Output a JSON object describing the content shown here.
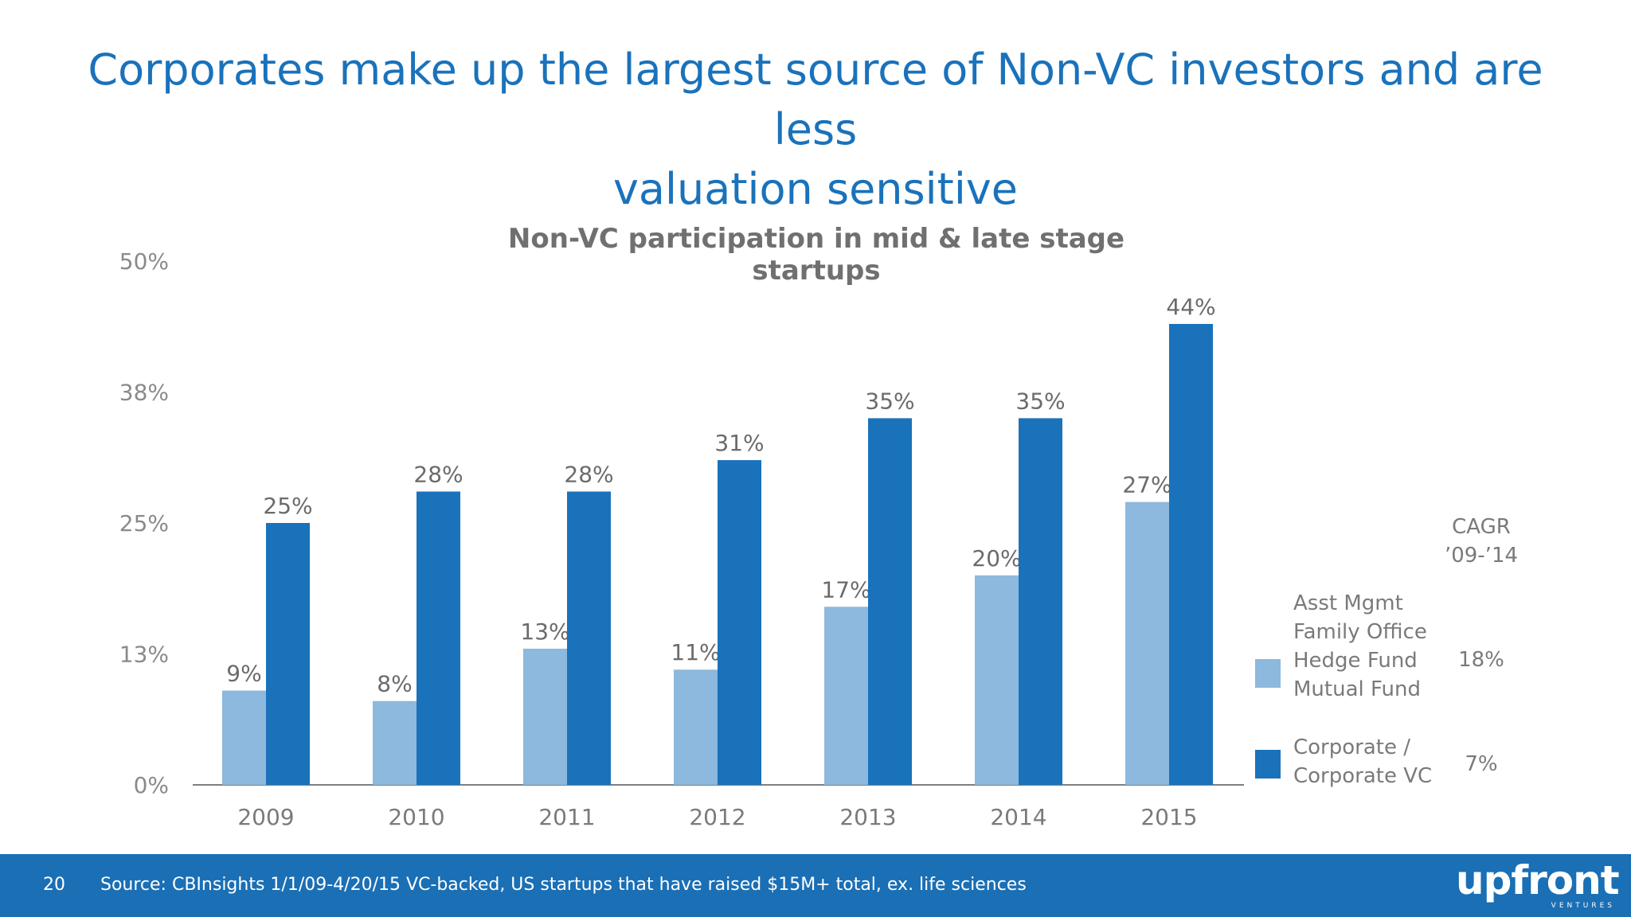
{
  "slide": {
    "title_line1": "Corporates make up the largest source of Non-VC investors and are less",
    "title_line2": "valuation sensitive"
  },
  "chart_data": {
    "type": "bar",
    "title": "Non-VC participation in mid & late stage startups",
    "categories": [
      "2009",
      "2010",
      "2011",
      "2012",
      "2013",
      "2014",
      "2015"
    ],
    "series": [
      {
        "name": "Asst Mgmt / Family Office / Hedge Fund / Mutual Fund",
        "color": "#8cb9dd",
        "values": [
          9,
          8,
          13,
          11,
          17,
          20,
          27
        ],
        "labels": [
          "9%",
          "8%",
          "13%",
          "11%",
          "17%",
          "20%",
          "27%"
        ]
      },
      {
        "name": "Corporate / Corporate VC",
        "color": "#1a72bb",
        "values": [
          25,
          28,
          28,
          31,
          35,
          35,
          44
        ],
        "labels": [
          "25%",
          "28%",
          "28%",
          "31%",
          "35%",
          "35%",
          "44%"
        ]
      }
    ],
    "y_ticks": [
      "0%",
      "13%",
      "25%",
      "38%",
      "50%"
    ],
    "ylim": [
      0,
      50
    ],
    "legend_position": "right",
    "grid": false
  },
  "legend": {
    "light_lines": [
      "Asst Mgmt",
      "Family Office",
      "Hedge Fund",
      "Mutual Fund"
    ],
    "dark_lines": [
      "Corporate /",
      "Corporate VC"
    ],
    "cagr_header_line1": "CAGR",
    "cagr_header_line2": "’09-’14",
    "cagr_light": "18%",
    "cagr_dark": "7%"
  },
  "footer": {
    "page_number": "20",
    "source": "Source: CBInsights 1/1/09-4/20/15 VC-backed, US startups that have raised $15M+ total, ex. life sciences",
    "logo_word": "upfront",
    "logo_sub": "VENTURES",
    "bar_color": "#1a6fb5"
  }
}
